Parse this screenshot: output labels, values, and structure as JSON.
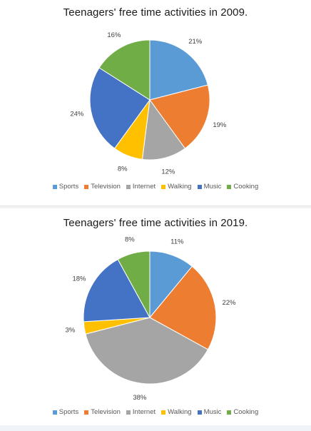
{
  "colors": {
    "Sports": "#5B9BD5",
    "Television": "#ED7D31",
    "Internet": "#A5A5A5",
    "Walking": "#FFC000",
    "Music": "#4472C4",
    "Cooking": "#70AD47"
  },
  "chart_data": [
    {
      "type": "pie",
      "title": "Teenagers' free time activities in 2009.",
      "categories": [
        "Sports",
        "Television",
        "Internet",
        "Walking",
        "Music",
        "Cooking"
      ],
      "values": [
        21,
        19,
        12,
        8,
        24,
        16
      ],
      "labels": [
        "21%",
        "19%",
        "12%",
        "8%",
        "24%",
        "16%"
      ],
      "legend_position": "bottom"
    },
    {
      "type": "pie",
      "title": "Teenagers' free time activities in 2019.",
      "categories": [
        "Sports",
        "Television",
        "Internet",
        "Walking",
        "Music",
        "Cooking"
      ],
      "values": [
        11,
        22,
        38,
        3,
        18,
        8
      ],
      "labels": [
        "11%",
        "22%",
        "38%",
        "3%",
        "18%",
        "8%"
      ],
      "legend_position": "bottom"
    }
  ]
}
